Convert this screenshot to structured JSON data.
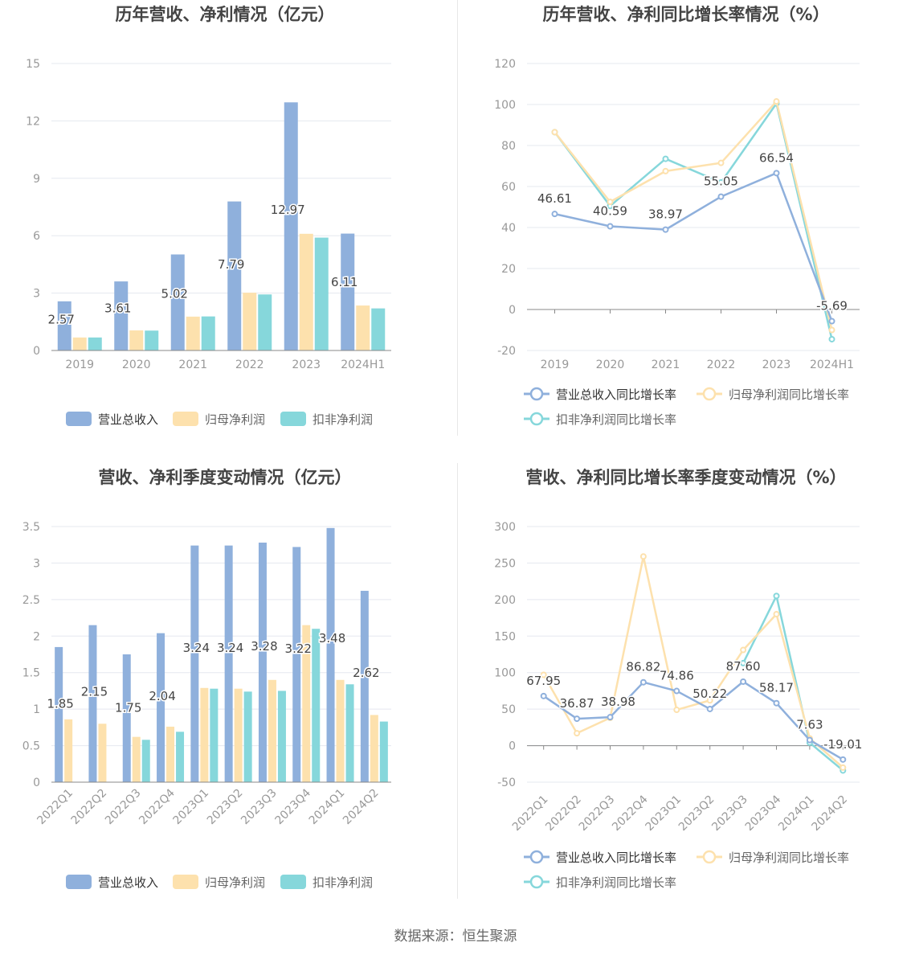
{
  "colors": {
    "revenue": "#8fb0dc",
    "net_profit": "#fde1ad",
    "deducted_profit": "#86d7db",
    "grid": "#e5e8ef",
    "axis": "#999999",
    "label": "#444444",
    "title": "#444444"
  },
  "source_text": "数据来源：恒生聚源",
  "chart_data": [
    {
      "id": "annual-amount",
      "type": "bar",
      "title": "历年营收、净利情况（亿元）",
      "categories": [
        "2019",
        "2020",
        "2021",
        "2022",
        "2023",
        "2024H1"
      ],
      "ylim": [
        0,
        15
      ],
      "yticks": [
        "0",
        "3",
        "6",
        "9",
        "12",
        "15"
      ],
      "series": [
        {
          "name": "营业总收入",
          "values": [
            2.57,
            3.61,
            5.02,
            7.79,
            12.97,
            6.11
          ]
        },
        {
          "name": "归母净利润",
          "values": [
            0.68,
            1.05,
            1.77,
            3.02,
            6.1,
            2.35
          ]
        },
        {
          "name": "扣非净利润",
          "values": [
            0.68,
            1.04,
            1.78,
            2.93,
            5.9,
            2.2
          ]
        }
      ],
      "data_labels": [
        "2.57",
        "3.61",
        "5.02",
        "7.79",
        "12.97",
        "6.11"
      ],
      "grid": true,
      "legend_position": "bottom"
    },
    {
      "id": "annual-growth",
      "type": "line",
      "title": "历年营收、净利同比增长率情况（%）",
      "categories": [
        "2019",
        "2020",
        "2021",
        "2022",
        "2023",
        "2024H1"
      ],
      "ylim": [
        -20,
        120
      ],
      "yticks": [
        "-20",
        "0",
        "20",
        "40",
        "60",
        "80",
        "100",
        "120"
      ],
      "series": [
        {
          "name": "营业总收入同比增长率",
          "values": [
            46.61,
            40.59,
            38.97,
            55.05,
            66.54,
            -5.69
          ]
        },
        {
          "name": "归母净利润同比增长率",
          "values": [
            86.5,
            52.5,
            67.5,
            71.5,
            101.5,
            -10.0
          ]
        },
        {
          "name": "扣非净利润同比增长率",
          "values": [
            86.5,
            50.5,
            73.5,
            62.0,
            100.5,
            -14.5
          ]
        }
      ],
      "data_labels": [
        "46.61",
        "40.59",
        "38.97",
        "55.05",
        "66.54",
        "-5.69"
      ],
      "grid": true,
      "legend_position": "bottom"
    },
    {
      "id": "quarterly-amount",
      "type": "bar",
      "title": "营收、净利季度变动情况（亿元）",
      "categories": [
        "2022Q1",
        "2022Q2",
        "2022Q3",
        "2022Q4",
        "2023Q1",
        "2023Q2",
        "2023Q3",
        "2023Q4",
        "2024Q1",
        "2024Q2"
      ],
      "ylim": [
        0,
        3.5
      ],
      "yticks": [
        "0",
        "0.5",
        "1",
        "1.5",
        "2",
        "2.5",
        "3",
        "3.5"
      ],
      "series": [
        {
          "name": "营业总收入",
          "values": [
            1.85,
            2.15,
            1.75,
            2.04,
            3.24,
            3.24,
            3.28,
            3.22,
            3.48,
            2.62
          ]
        },
        {
          "name": "归母净利润",
          "values": [
            0.86,
            0.8,
            0.62,
            0.76,
            1.29,
            1.28,
            1.4,
            2.15,
            1.4,
            0.92
          ]
        },
        {
          "name": "扣非净利润",
          "values": [
            0.0,
            0.0,
            0.58,
            0.69,
            1.28,
            1.24,
            1.25,
            2.1,
            1.34,
            0.83
          ]
        }
      ],
      "data_labels": [
        "1.85",
        "2.15",
        "1.75",
        "2.04",
        "3.24",
        "3.24",
        "3.28",
        "3.22",
        "3.48",
        "2.62"
      ],
      "grid": true,
      "legend_position": "bottom"
    },
    {
      "id": "quarterly-growth",
      "type": "line",
      "title": "营收、净利同比增长率季度变动情况（%）",
      "categories": [
        "2022Q1",
        "2022Q2",
        "2022Q3",
        "2022Q4",
        "2023Q1",
        "2023Q2",
        "2023Q3",
        "2023Q4",
        "2024Q1",
        "2024Q2"
      ],
      "ylim": [
        -50,
        300
      ],
      "yticks": [
        "-50",
        "0",
        "50",
        "100",
        "150",
        "200",
        "250",
        "300"
      ],
      "series": [
        {
          "name": "营业总收入同比增长率",
          "values": [
            67.95,
            36.87,
            38.98,
            86.82,
            74.86,
            50.22,
            87.6,
            58.17,
            7.63,
            -19.01
          ]
        },
        {
          "name": "归母净利润同比增长率",
          "values": [
            97,
            17,
            38,
            259,
            49,
            62,
            131,
            180,
            10,
            -30
          ]
        },
        {
          "name": "扣非净利润同比增长率",
          "values": [
            null,
            null,
            null,
            null,
            null,
            null,
            113,
            205,
            4,
            -34
          ]
        }
      ],
      "data_labels": [
        "67.95",
        "36.87",
        "38.98",
        "86.82",
        "74.86",
        "50.22",
        "87.60",
        "58.17",
        "7.63",
        "-19.01"
      ],
      "grid": true,
      "legend_position": "bottom"
    }
  ]
}
